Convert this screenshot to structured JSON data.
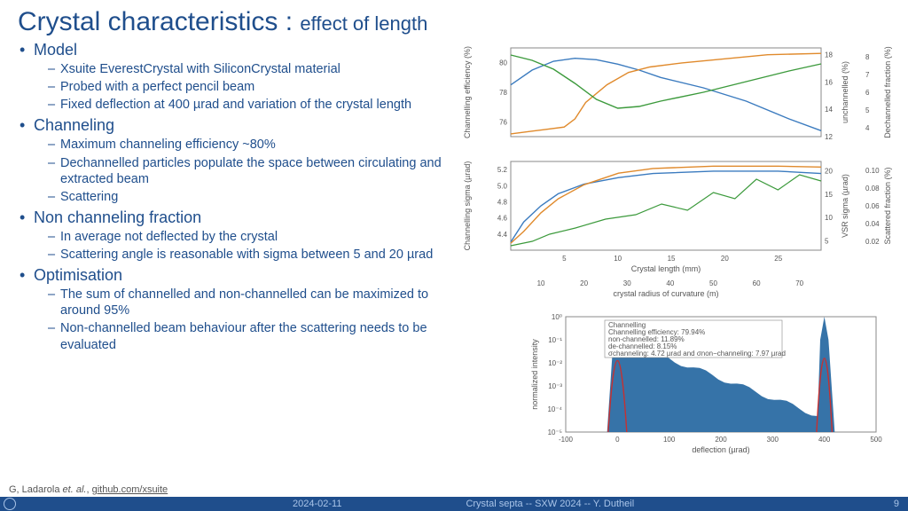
{
  "title_main": "Crystal characteristics : ",
  "title_sub": "effect of length",
  "bullets": [
    {
      "h": "Model",
      "s": [
        "Xsuite EverestCrystal with SiliconCrystal material",
        "Probed with a perfect pencil beam",
        "Fixed deflection at 400 µrad and variation of the crystal length"
      ]
    },
    {
      "h": "Channeling",
      "s": [
        "Maximum channeling efficiency ~80%",
        "Dechannelled particles populate the space between circulating and extracted beam",
        "Scattering"
      ]
    },
    {
      "h": "Non channeling fraction",
      "s": [
        "In average not deflected by the crystal",
        "Scattering angle is reasonable with sigma between 5 and 20 µrad"
      ]
    },
    {
      "h": "Optimisation",
      "s": [
        "The sum of channelled and non-channelled can be maximized to around 95%",
        "Non-channelled beam behaviour after the scattering needs to be evaluated"
      ]
    }
  ],
  "reference": {
    "pre": "G, Ladarola ",
    "em": "et. al.",
    "post": ", ",
    "link": "github.com/xsuite"
  },
  "footer": {
    "date": "2024-02-11",
    "center": "Crystal septa -- SXW 2024 -- Y. Dutheil",
    "page": "9"
  },
  "colors": {
    "blue": "#3b7bbf",
    "green": "#3c9a3c",
    "orange": "#e08a2c",
    "red": "#c73030",
    "hist": "#2b6ca3"
  },
  "chart1": {
    "xlabel": "Crystal length (mm)",
    "xticks": [
      "5",
      "10",
      "15",
      "20",
      "25"
    ],
    "yL": {
      "label": "Channelling efficiency (%)",
      "ticks": [
        "76",
        "78",
        "80"
      ],
      "color": "#3b7bbf"
    },
    "yR1": {
      "label": "unchannelled (%)",
      "ticks": [
        "12",
        "14",
        "16",
        "18"
      ],
      "color": "#e08a2c"
    },
    "yR2": {
      "label": "Dechannelled fraction (%)",
      "ticks": [
        "4",
        "5",
        "6",
        "7",
        "8"
      ],
      "color": "#3c9a3c"
    },
    "blue": [
      [
        0,
        78.5
      ],
      [
        2,
        79.5
      ],
      [
        4,
        80.1
      ],
      [
        6,
        80.3
      ],
      [
        8,
        80.2
      ],
      [
        10,
        79.9
      ],
      [
        12,
        79.5
      ],
      [
        14,
        79.0
      ],
      [
        18,
        78.3
      ],
      [
        22,
        77.4
      ],
      [
        26,
        76.2
      ],
      [
        29,
        75.4
      ]
    ],
    "orange": [
      [
        0,
        12.2
      ],
      [
        2,
        12.4
      ],
      [
        3,
        12.5
      ],
      [
        5,
        12.7
      ],
      [
        6,
        13.3
      ],
      [
        7,
        14.5
      ],
      [
        9,
        15.8
      ],
      [
        11,
        16.7
      ],
      [
        13,
        17.1
      ],
      [
        16,
        17.4
      ],
      [
        20,
        17.7
      ],
      [
        24,
        18.0
      ],
      [
        29,
        18.1
      ]
    ],
    "green": [
      [
        0,
        8.1
      ],
      [
        2,
        7.8
      ],
      [
        4,
        7.3
      ],
      [
        6,
        6.5
      ],
      [
        8,
        5.6
      ],
      [
        10,
        5.1
      ],
      [
        12,
        5.2
      ],
      [
        14,
        5.5
      ],
      [
        18,
        6.0
      ],
      [
        22,
        6.6
      ],
      [
        26,
        7.2
      ],
      [
        29,
        7.6
      ]
    ]
  },
  "chart2": {
    "xlabel": "crystal radius of curvature (m)",
    "xticks": [
      "10",
      "20",
      "30",
      "40",
      "50",
      "60",
      "70"
    ],
    "yL": {
      "label": "Channelling sigma (µrad)",
      "ticks": [
        "4.4",
        "4.6",
        "4.8",
        "5.0",
        "5.2"
      ],
      "color": "#3b7bbf"
    },
    "yR1": {
      "label": "VSR sigma (µrad)",
      "ticks": [
        "5",
        "10",
        "15",
        "20"
      ],
      "color": "#e08a2c"
    },
    "yR2": {
      "label": "Scattered fraction (%)",
      "ticks": [
        "0.02",
        "0.04",
        "0.06",
        "0.08",
        "0.10"
      ],
      "color": "#3c9a3c"
    },
    "blue": [
      [
        3,
        4.3
      ],
      [
        6,
        4.55
      ],
      [
        10,
        4.75
      ],
      [
        14,
        4.9
      ],
      [
        20,
        5.02
      ],
      [
        28,
        5.1
      ],
      [
        36,
        5.15
      ],
      [
        50,
        5.18
      ],
      [
        65,
        5.18
      ],
      [
        75,
        5.15
      ]
    ],
    "orange": [
      [
        3,
        4.5
      ],
      [
        6,
        7.0
      ],
      [
        10,
        11.0
      ],
      [
        14,
        14.0
      ],
      [
        20,
        17.0
      ],
      [
        28,
        19.5
      ],
      [
        36,
        20.5
      ],
      [
        50,
        21.0
      ],
      [
        65,
        21.0
      ],
      [
        75,
        20.8
      ]
    ],
    "green": [
      [
        3,
        0.015
      ],
      [
        8,
        0.02
      ],
      [
        12,
        0.028
      ],
      [
        18,
        0.035
      ],
      [
        25,
        0.045
      ],
      [
        32,
        0.05
      ],
      [
        38,
        0.062
      ],
      [
        44,
        0.055
      ],
      [
        50,
        0.075
      ],
      [
        55,
        0.068
      ],
      [
        60,
        0.09
      ],
      [
        65,
        0.078
      ],
      [
        70,
        0.095
      ],
      [
        75,
        0.088
      ]
    ]
  },
  "chart3": {
    "xlabel": "deflection (µrad)",
    "ylabel": "normalized intensity",
    "xticks": [
      "-100",
      "0",
      "100",
      "200",
      "300",
      "400",
      "500"
    ],
    "yticks": [
      "10⁻⁵",
      "10⁻⁴",
      "10⁻³",
      "10⁻²",
      "10⁻¹",
      "10⁰"
    ],
    "legend": [
      "Channelling",
      "Channelling efficiency: 79.94%",
      "non-channelled: 11.89%",
      "de-channelled: 8.15%",
      "σchanneling: 4.72 µrad and σnon−channeling: 7.97 µrad"
    ]
  }
}
